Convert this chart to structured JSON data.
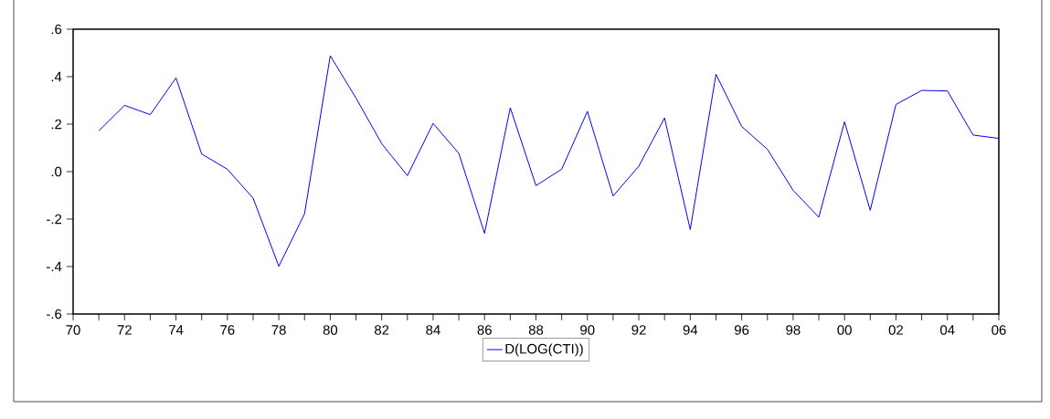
{
  "chart_data": {
    "type": "line",
    "x": [
      1971,
      1972,
      1973,
      1974,
      1975,
      1976,
      1977,
      1978,
      1979,
      1980,
      1981,
      1982,
      1983,
      1984,
      1985,
      1986,
      1987,
      1988,
      1989,
      1990,
      1991,
      1992,
      1993,
      1994,
      1995,
      1996,
      1997,
      1998,
      1999,
      2000,
      2001,
      2002,
      2003,
      2004,
      2005,
      2006
    ],
    "series": [
      {
        "name": "D(LOG(CTI))",
        "color": "#0000ff",
        "values": [
          0.172,
          0.279,
          0.24,
          0.395,
          0.074,
          0.01,
          -0.112,
          -0.399,
          -0.178,
          0.488,
          0.31,
          0.118,
          -0.017,
          0.203,
          0.077,
          -0.26,
          0.269,
          -0.059,
          0.01,
          0.254,
          -0.103,
          0.023,
          0.226,
          -0.244,
          0.41,
          0.19,
          0.094,
          -0.079,
          -0.192,
          0.21,
          -0.163,
          0.283,
          0.342,
          0.34,
          0.154,
          0.14
        ]
      }
    ],
    "xlim": [
      1970,
      2006
    ],
    "xticks": [
      {
        "value": 1970,
        "label": "70"
      },
      {
        "value": 1971,
        "label": null
      },
      {
        "value": 1972,
        "label": "72"
      },
      {
        "value": 1973,
        "label": null
      },
      {
        "value": 1974,
        "label": "74"
      },
      {
        "value": 1975,
        "label": null
      },
      {
        "value": 1976,
        "label": "76"
      },
      {
        "value": 1977,
        "label": null
      },
      {
        "value": 1978,
        "label": "78"
      },
      {
        "value": 1979,
        "label": null
      },
      {
        "value": 1980,
        "label": "80"
      },
      {
        "value": 1981,
        "label": null
      },
      {
        "value": 1982,
        "label": "82"
      },
      {
        "value": 1983,
        "label": null
      },
      {
        "value": 1984,
        "label": "84"
      },
      {
        "value": 1985,
        "label": null
      },
      {
        "value": 1986,
        "label": "86"
      },
      {
        "value": 1987,
        "label": null
      },
      {
        "value": 1988,
        "label": "88"
      },
      {
        "value": 1989,
        "label": null
      },
      {
        "value": 1990,
        "label": "90"
      },
      {
        "value": 1991,
        "label": null
      },
      {
        "value": 1992,
        "label": "92"
      },
      {
        "value": 1993,
        "label": null
      },
      {
        "value": 1994,
        "label": "94"
      },
      {
        "value": 1995,
        "label": null
      },
      {
        "value": 1996,
        "label": "96"
      },
      {
        "value": 1997,
        "label": null
      },
      {
        "value": 1998,
        "label": "98"
      },
      {
        "value": 1999,
        "label": null
      },
      {
        "value": 2000,
        "label": "00"
      },
      {
        "value": 2001,
        "label": null
      },
      {
        "value": 2002,
        "label": "02"
      },
      {
        "value": 2003,
        "label": null
      },
      {
        "value": 2004,
        "label": "04"
      },
      {
        "value": 2005,
        "label": null
      },
      {
        "value": 2006,
        "label": "06"
      }
    ],
    "ylim": [
      -0.6,
      0.6
    ],
    "yticks": [
      {
        "value": -0.6,
        "label": "-.6"
      },
      {
        "value": -0.4,
        "label": "-.4"
      },
      {
        "value": -0.2,
        "label": "-.2"
      },
      {
        "value": 0.0,
        "label": ".0"
      },
      {
        "value": 0.2,
        "label": ".2"
      },
      {
        "value": 0.4,
        "label": ".4"
      },
      {
        "value": 0.6,
        "label": ".6"
      }
    ],
    "grid": false,
    "legend": "bottom",
    "marker": "none",
    "line_style": "solid"
  }
}
